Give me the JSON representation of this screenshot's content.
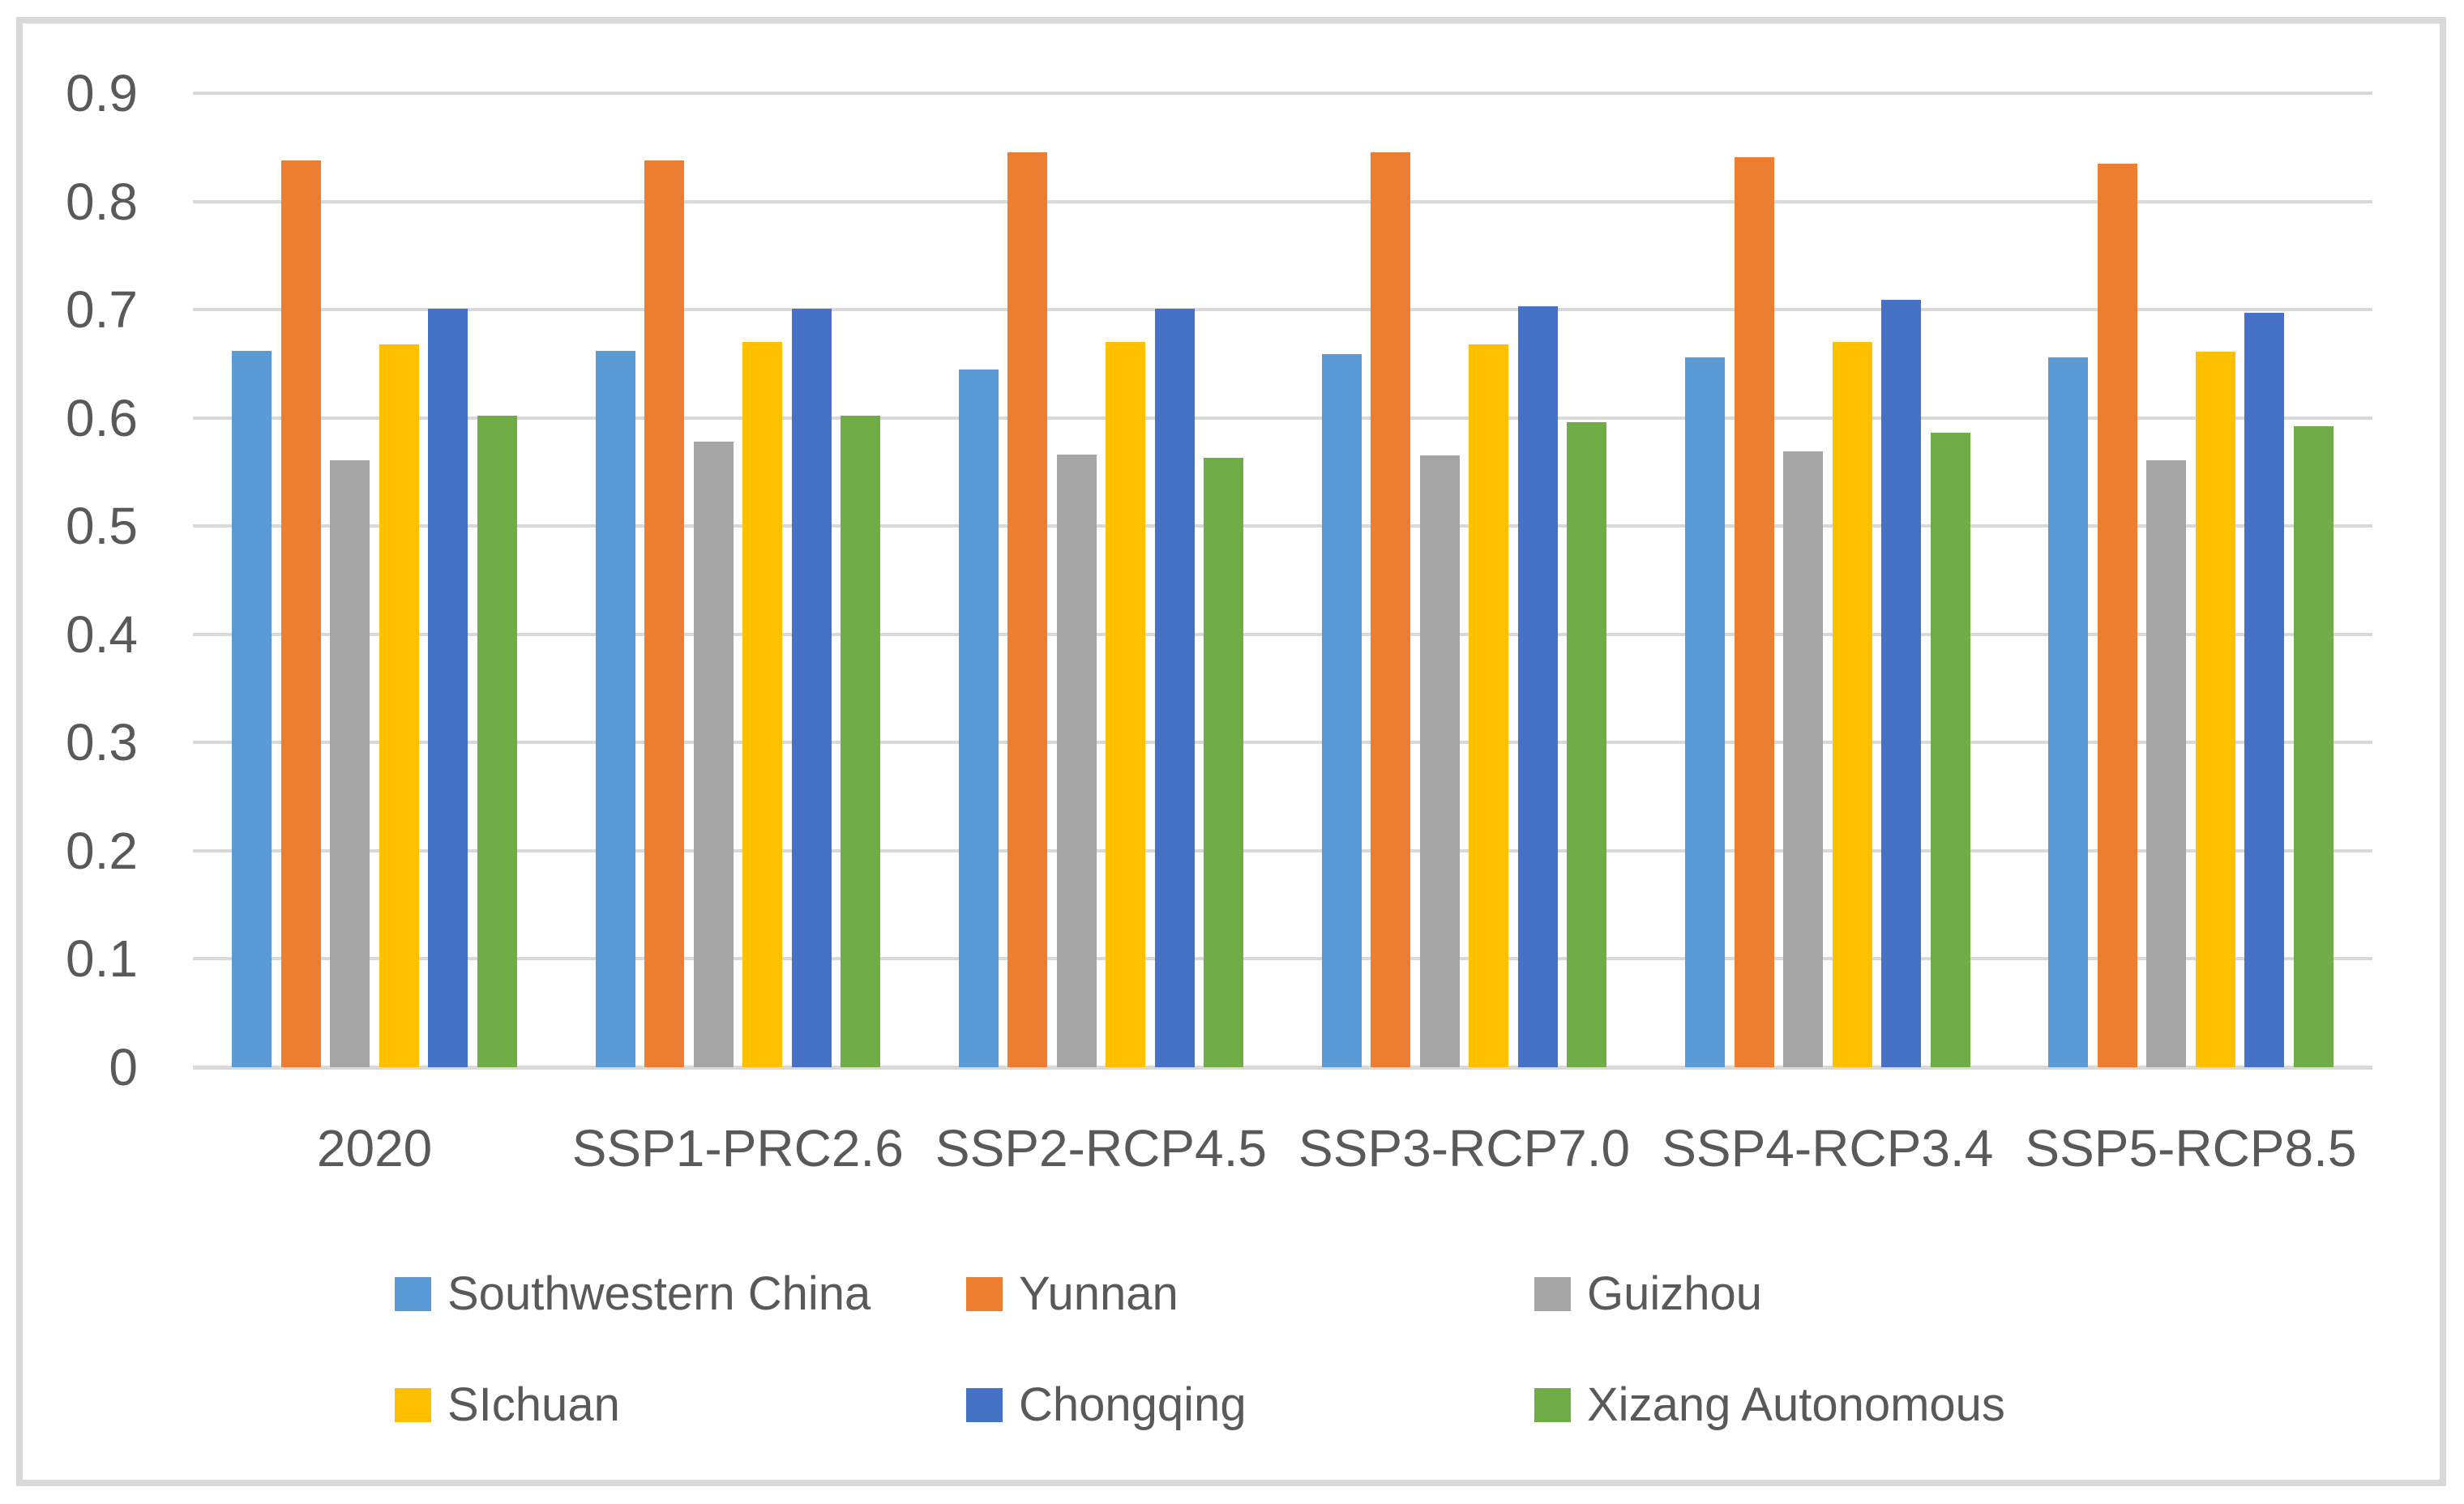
{
  "chart_data": {
    "type": "bar",
    "title": "",
    "xlabel": "",
    "ylabel": "",
    "categories": [
      "2020",
      "SSP1-PRC2.6",
      "SSP2-RCP4.5",
      "SSP3-RCP7.0",
      "SSP4-RCP3.4",
      "SSP5-RCP8.5"
    ],
    "series": [
      {
        "name": "Southwestern China",
        "color": "#5B9BD5",
        "values": [
          0.662,
          0.662,
          0.645,
          0.659,
          0.656,
          0.656
        ]
      },
      {
        "name": "Yunnan",
        "color": "#ED7D31",
        "values": [
          0.838,
          0.838,
          0.845,
          0.845,
          0.841,
          0.835
        ]
      },
      {
        "name": "Guizhou",
        "color": "#A5A5A5",
        "values": [
          0.561,
          0.578,
          0.566,
          0.565,
          0.569,
          0.561
        ]
      },
      {
        "name": "SIchuan",
        "color": "#FFC000",
        "values": [
          0.668,
          0.67,
          0.67,
          0.668,
          0.67,
          0.661
        ]
      },
      {
        "name": "Chongqing",
        "color": "#4472C4",
        "values": [
          0.701,
          0.701,
          0.701,
          0.703,
          0.709,
          0.697
        ]
      },
      {
        "name": "Xizang Autonomous",
        "color": "#70AD47",
        "values": [
          0.602,
          0.602,
          0.563,
          0.596,
          0.586,
          0.592
        ]
      }
    ],
    "ylim": [
      0,
      0.9
    ],
    "yticks": [
      "0",
      "0.1",
      "0.2",
      "0.3",
      "0.4",
      "0.5",
      "0.6",
      "0.7",
      "0.8",
      "0.9"
    ],
    "grid": true,
    "legend_position": "bottom",
    "legend_rows": [
      [
        "Southwestern China",
        "Yunnan",
        "Guizhou"
      ],
      [
        "SIchuan",
        "Chongqing",
        "Xizang Autonomous"
      ]
    ]
  },
  "colors": {
    "background": "#FFFFFF",
    "border": "#D9D9D9",
    "gridline": "#D9D9D9",
    "axis": "#D9D9D9",
    "text": "#595959"
  }
}
